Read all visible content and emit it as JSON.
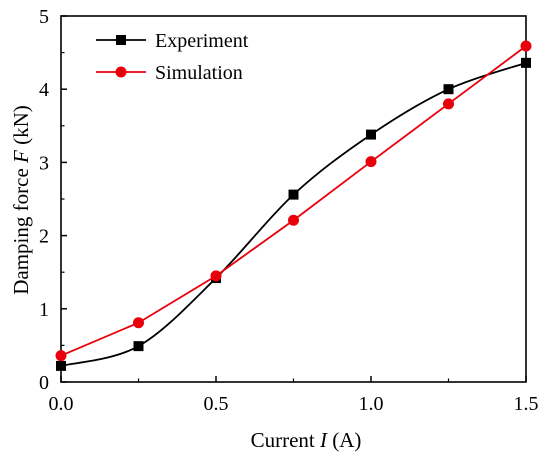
{
  "chart_data": {
    "type": "line",
    "x": [
      0.0,
      0.25,
      0.5,
      0.75,
      1.0,
      1.25,
      1.5
    ],
    "series": [
      {
        "name": "Experiment",
        "values": [
          0.22,
          0.49,
          1.42,
          2.56,
          3.38,
          4.0,
          4.36
        ],
        "color": "#000000",
        "marker": "square",
        "smooth": true
      },
      {
        "name": "Simulation",
        "values": [
          0.36,
          0.81,
          1.45,
          2.21,
          3.01,
          3.8,
          4.59
        ],
        "color": "#e8000b",
        "marker": "circle",
        "smooth": false
      }
    ],
    "xlabel_pre": "Current ",
    "xlabel_var": "I",
    "xlabel_post": " (A)",
    "ylabel_pre": "Damping force ",
    "ylabel_var": "F",
    "ylabel_post": " (kN)",
    "xlim": [
      0,
      1.5
    ],
    "ylim": [
      0,
      5
    ],
    "xticks": [
      0.0,
      0.5,
      1.0,
      1.5
    ],
    "xtick_labels": [
      "0.0",
      "0.5",
      "1.0",
      "1.5"
    ],
    "yticks": [
      0,
      1,
      2,
      3,
      4,
      5
    ],
    "ytick_labels": [
      "0",
      "1",
      "2",
      "3",
      "4",
      "5"
    ],
    "grid": false,
    "legend_position": "top-left"
  }
}
